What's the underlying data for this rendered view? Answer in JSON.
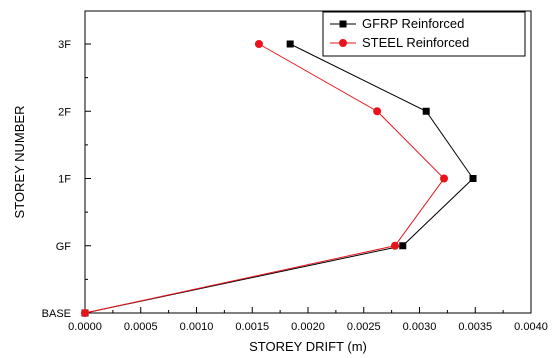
{
  "chart_data": {
    "type": "line",
    "xlabel": "STOREY DRIFT (m)",
    "ylabel": "STOREY NUMBER",
    "xlim": [
      0,
      0.004
    ],
    "x_ticks": [
      "0.0000",
      "0.0005",
      "0.0010",
      "0.0015",
      "0.0020",
      "0.0025",
      "0.0030",
      "0.0035",
      "0.0040"
    ],
    "categories": [
      "BASE",
      "GF",
      "1F",
      "2F",
      "3F"
    ],
    "grid": false,
    "legend_position": "top-right",
    "series": [
      {
        "name": "GFRP Reinforced",
        "color": "#000000",
        "marker": "square",
        "values": [
          0.0,
          0.00285,
          0.00348,
          0.00306,
          0.00184
        ]
      },
      {
        "name": "STEEL  Reinforced",
        "color": "#e8141c",
        "marker": "circle",
        "values": [
          0.0,
          0.00278,
          0.00322,
          0.00262,
          0.00156
        ]
      }
    ]
  }
}
